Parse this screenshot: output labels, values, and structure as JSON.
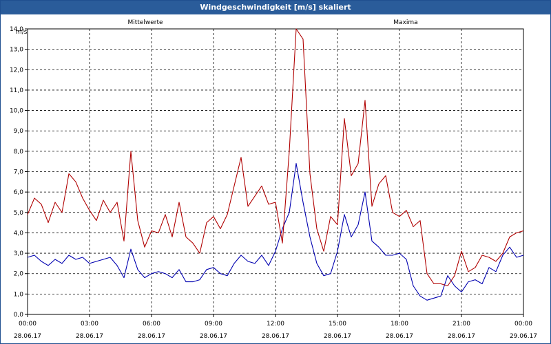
{
  "window": {
    "title": "Windgeschwindigkeit [m/s] skaliert"
  },
  "colors": {
    "mean": "#0000b0",
    "max": "#b00000",
    "grid": "#000000",
    "titlebar": "#2a5c9a"
  },
  "chart_data": {
    "type": "line",
    "title": "Windgeschwindigkeit [m/s] skaliert",
    "ylabel": "m/s",
    "ylim": [
      0,
      14.0
    ],
    "yticks": [
      "0,0",
      "1,0",
      "2,0",
      "3,0",
      "4,0",
      "5,0",
      "6,0",
      "7,0",
      "8,0",
      "9,0",
      "10,0",
      "11,0",
      "12,0",
      "13,0",
      "14,0"
    ],
    "xlim": [
      "28.06.17 00:00",
      "29.06.17 00:00"
    ],
    "xticks": [
      {
        "time": "00:00",
        "date": "28.06.17"
      },
      {
        "time": "03:00",
        "date": "28.06.17"
      },
      {
        "time": "06:00",
        "date": "28.06.17"
      },
      {
        "time": "09:00",
        "date": "28.06.17"
      },
      {
        "time": "12:00",
        "date": "28.06.17"
      },
      {
        "time": "15:00",
        "date": "28.06.17"
      },
      {
        "time": "18:00",
        "date": "28.06.17"
      },
      {
        "time": "21:00",
        "date": "28.06.17"
      },
      {
        "time": "00:00",
        "date": "29.06.17"
      }
    ],
    "grid": true,
    "series": [
      {
        "name": "Mittelwerte",
        "color": "#0000b0",
        "x": [
          "00:00",
          "00:20",
          "00:40",
          "01:00",
          "01:20",
          "01:40",
          "02:00",
          "02:20",
          "02:40",
          "03:00",
          "03:20",
          "03:40",
          "04:00",
          "04:20",
          "04:40",
          "05:00",
          "05:20",
          "05:40",
          "06:00",
          "06:20",
          "06:40",
          "07:00",
          "07:20",
          "07:40",
          "08:00",
          "08:20",
          "08:40",
          "09:00",
          "09:20",
          "09:40",
          "10:00",
          "10:20",
          "10:40",
          "11:00",
          "11:20",
          "11:40",
          "12:00",
          "12:20",
          "12:40",
          "13:00",
          "13:20",
          "13:40",
          "14:00",
          "14:20",
          "14:40",
          "15:00",
          "15:20",
          "15:40",
          "16:00",
          "16:20",
          "16:40",
          "17:00",
          "17:20",
          "17:40",
          "18:00",
          "18:20",
          "18:40",
          "19:00",
          "19:20",
          "19:40",
          "20:00",
          "20:20",
          "20:40",
          "21:00",
          "21:20",
          "21:40",
          "22:00",
          "22:20",
          "22:40",
          "23:00",
          "23:20",
          "23:40",
          "00:00"
        ],
        "values": [
          2.8,
          2.9,
          2.6,
          2.4,
          2.7,
          2.5,
          2.9,
          2.7,
          2.8,
          2.5,
          2.6,
          2.7,
          2.8,
          2.4,
          1.8,
          3.2,
          2.2,
          1.8,
          2.0,
          2.1,
          2.0,
          1.8,
          2.2,
          1.6,
          1.6,
          1.7,
          2.2,
          2.3,
          2.0,
          1.9,
          2.5,
          2.9,
          2.6,
          2.5,
          2.9,
          2.4,
          3.1,
          4.2,
          5.0,
          7.4,
          5.5,
          3.8,
          2.5,
          1.9,
          2.0,
          3.1,
          4.9,
          3.8,
          4.4,
          6.0,
          3.6,
          3.3,
          2.9,
          2.9,
          3.0,
          2.7,
          1.4,
          0.9,
          0.7,
          0.8,
          0.9,
          1.9,
          1.4,
          1.1,
          1.6,
          1.7,
          1.5,
          2.3,
          2.1,
          2.9,
          3.3,
          2.8,
          2.9
        ]
      },
      {
        "name": "Maxima",
        "color": "#b00000",
        "x": [
          "00:00",
          "00:20",
          "00:40",
          "01:00",
          "01:20",
          "01:40",
          "02:00",
          "02:20",
          "02:40",
          "03:00",
          "03:20",
          "03:40",
          "04:00",
          "04:20",
          "04:40",
          "05:00",
          "05:20",
          "05:40",
          "06:00",
          "06:20",
          "06:40",
          "07:00",
          "07:20",
          "07:40",
          "08:00",
          "08:20",
          "08:40",
          "09:00",
          "09:20",
          "09:40",
          "10:00",
          "10:20",
          "10:40",
          "11:00",
          "11:20",
          "11:40",
          "12:00",
          "12:20",
          "12:40",
          "13:00",
          "13:20",
          "13:40",
          "14:00",
          "14:20",
          "14:40",
          "15:00",
          "15:20",
          "15:40",
          "16:00",
          "16:20",
          "16:40",
          "17:00",
          "17:20",
          "17:40",
          "18:00",
          "18:20",
          "18:40",
          "19:00",
          "19:20",
          "19:40",
          "20:00",
          "20:20",
          "20:40",
          "21:00",
          "21:20",
          "21:40",
          "22:00",
          "22:20",
          "22:40",
          "23:00",
          "23:20",
          "23:40",
          "00:00"
        ],
        "values": [
          4.9,
          5.7,
          5.4,
          4.5,
          5.5,
          5.0,
          6.9,
          6.5,
          5.7,
          5.1,
          4.6,
          5.6,
          5.0,
          5.5,
          3.6,
          8.0,
          4.6,
          3.3,
          4.1,
          4.0,
          4.9,
          3.8,
          5.5,
          3.8,
          3.5,
          3.0,
          4.5,
          4.8,
          4.2,
          4.9,
          6.3,
          7.7,
          5.3,
          5.8,
          6.3,
          5.4,
          5.5,
          3.5,
          8.0,
          14.0,
          13.5,
          6.9,
          4.2,
          3.1,
          4.8,
          4.4,
          9.6,
          6.8,
          7.4,
          10.5,
          5.3,
          6.4,
          6.8,
          5.0,
          4.8,
          5.1,
          4.3,
          4.6,
          2.0,
          1.5,
          1.5,
          1.4,
          1.9,
          3.1,
          2.1,
          2.3,
          2.9,
          2.8,
          2.6,
          3.0,
          3.8,
          4.0,
          4.1
        ]
      }
    ]
  }
}
